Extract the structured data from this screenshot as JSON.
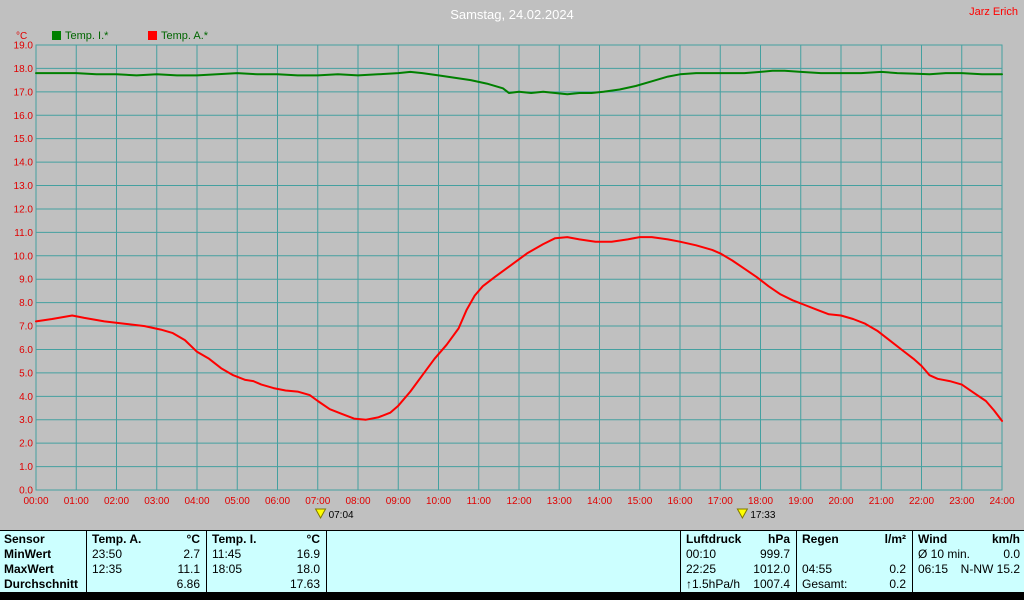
{
  "header": {
    "title": "Samstag, 24.02.2024",
    "owner": "Jarz Erich"
  },
  "chart_data": {
    "type": "line",
    "unit_label": "°C",
    "xlim": [
      0,
      24
    ],
    "ylim": [
      0,
      19
    ],
    "y_step": 1,
    "grid": true,
    "legend_position": "top-left",
    "x_ticks": [
      "00:00",
      "01:00",
      "02:00",
      "03:00",
      "04:00",
      "05:00",
      "06:00",
      "07:00",
      "08:00",
      "09:00",
      "10:00",
      "11:00",
      "12:00",
      "13:00",
      "14:00",
      "15:00",
      "16:00",
      "17:00",
      "18:00",
      "19:00",
      "20:00",
      "21:00",
      "22:00",
      "23:00",
      "24:00"
    ],
    "colors": {
      "background": "#c0c0c0",
      "grid": "#44a0a0",
      "axis_text": "#e00000",
      "temp_inside": "#008000",
      "temp_outside": "#ff0000",
      "sun_marker": "#ffff00"
    },
    "series": [
      {
        "id": "temp-i",
        "name": "Temp. I.*",
        "color_key": "temp_inside",
        "points": [
          [
            0,
            17.8
          ],
          [
            0.5,
            17.8
          ],
          [
            1,
            17.8
          ],
          [
            1.5,
            17.75
          ],
          [
            2,
            17.75
          ],
          [
            2.5,
            17.7
          ],
          [
            3,
            17.75
          ],
          [
            3.5,
            17.7
          ],
          [
            4,
            17.7
          ],
          [
            4.5,
            17.75
          ],
          [
            5,
            17.8
          ],
          [
            5.5,
            17.75
          ],
          [
            6,
            17.75
          ],
          [
            6.5,
            17.7
          ],
          [
            7,
            17.7
          ],
          [
            7.5,
            17.75
          ],
          [
            8,
            17.7
          ],
          [
            8.5,
            17.75
          ],
          [
            9,
            17.8
          ],
          [
            9.3,
            17.85
          ],
          [
            9.6,
            17.8
          ],
          [
            10,
            17.7
          ],
          [
            10.4,
            17.6
          ],
          [
            10.8,
            17.5
          ],
          [
            11.2,
            17.35
          ],
          [
            11.6,
            17.15
          ],
          [
            11.75,
            16.95
          ],
          [
            12,
            17.0
          ],
          [
            12.3,
            16.95
          ],
          [
            12.6,
            17.0
          ],
          [
            12.9,
            16.95
          ],
          [
            13.2,
            16.9
          ],
          [
            13.5,
            16.95
          ],
          [
            13.8,
            16.95
          ],
          [
            14.1,
            17.0
          ],
          [
            14.5,
            17.1
          ],
          [
            14.9,
            17.25
          ],
          [
            15.3,
            17.45
          ],
          [
            15.7,
            17.65
          ],
          [
            16,
            17.75
          ],
          [
            16.4,
            17.8
          ],
          [
            16.8,
            17.8
          ],
          [
            17.2,
            17.8
          ],
          [
            17.6,
            17.8
          ],
          [
            18,
            17.85
          ],
          [
            18.3,
            17.9
          ],
          [
            18.6,
            17.9
          ],
          [
            19,
            17.85
          ],
          [
            19.5,
            17.8
          ],
          [
            20,
            17.8
          ],
          [
            20.5,
            17.8
          ],
          [
            21,
            17.85
          ],
          [
            21.4,
            17.8
          ],
          [
            21.8,
            17.78
          ],
          [
            22.2,
            17.75
          ],
          [
            22.6,
            17.8
          ],
          [
            23,
            17.8
          ],
          [
            23.5,
            17.75
          ],
          [
            24,
            17.75
          ]
        ]
      },
      {
        "id": "temp-a",
        "name": "Temp. A.*",
        "color_key": "temp_outside",
        "points": [
          [
            0,
            7.2
          ],
          [
            0.4,
            7.3
          ],
          [
            0.9,
            7.45
          ],
          [
            1.2,
            7.35
          ],
          [
            1.7,
            7.2
          ],
          [
            2.2,
            7.1
          ],
          [
            2.7,
            7.0
          ],
          [
            3.1,
            6.85
          ],
          [
            3.4,
            6.7
          ],
          [
            3.7,
            6.4
          ],
          [
            4.0,
            5.9
          ],
          [
            4.3,
            5.6
          ],
          [
            4.6,
            5.2
          ],
          [
            4.9,
            4.9
          ],
          [
            5.2,
            4.7
          ],
          [
            5.4,
            4.65
          ],
          [
            5.6,
            4.5
          ],
          [
            5.9,
            4.35
          ],
          [
            6.2,
            4.25
          ],
          [
            6.5,
            4.2
          ],
          [
            6.8,
            4.05
          ],
          [
            7.0,
            3.8
          ],
          [
            7.3,
            3.45
          ],
          [
            7.6,
            3.25
          ],
          [
            7.9,
            3.05
          ],
          [
            8.2,
            3.0
          ],
          [
            8.5,
            3.1
          ],
          [
            8.8,
            3.3
          ],
          [
            9.0,
            3.6
          ],
          [
            9.3,
            4.2
          ],
          [
            9.6,
            4.9
          ],
          [
            9.9,
            5.6
          ],
          [
            10.2,
            6.2
          ],
          [
            10.5,
            6.9
          ],
          [
            10.7,
            7.7
          ],
          [
            10.9,
            8.3
          ],
          [
            11.1,
            8.7
          ],
          [
            11.4,
            9.1
          ],
          [
            11.8,
            9.6
          ],
          [
            12.2,
            10.1
          ],
          [
            12.6,
            10.5
          ],
          [
            12.9,
            10.75
          ],
          [
            13.2,
            10.8
          ],
          [
            13.5,
            10.7
          ],
          [
            13.9,
            10.6
          ],
          [
            14.3,
            10.6
          ],
          [
            14.7,
            10.7
          ],
          [
            15.0,
            10.8
          ],
          [
            15.3,
            10.8
          ],
          [
            15.7,
            10.7
          ],
          [
            16.0,
            10.6
          ],
          [
            16.4,
            10.45
          ],
          [
            16.8,
            10.25
          ],
          [
            17.0,
            10.1
          ],
          [
            17.3,
            9.8
          ],
          [
            17.6,
            9.45
          ],
          [
            17.9,
            9.1
          ],
          [
            18.2,
            8.7
          ],
          [
            18.5,
            8.35
          ],
          [
            18.8,
            8.1
          ],
          [
            19.1,
            7.9
          ],
          [
            19.4,
            7.7
          ],
          [
            19.7,
            7.5
          ],
          [
            20.0,
            7.45
          ],
          [
            20.3,
            7.3
          ],
          [
            20.6,
            7.1
          ],
          [
            20.9,
            6.8
          ],
          [
            21.2,
            6.4
          ],
          [
            21.5,
            6.0
          ],
          [
            21.8,
            5.6
          ],
          [
            22.0,
            5.3
          ],
          [
            22.2,
            4.9
          ],
          [
            22.4,
            4.75
          ],
          [
            22.7,
            4.65
          ],
          [
            23.0,
            4.5
          ],
          [
            23.3,
            4.15
          ],
          [
            23.6,
            3.8
          ],
          [
            23.8,
            3.4
          ],
          [
            24.0,
            2.95
          ]
        ]
      }
    ],
    "sun_markers": [
      {
        "time_label": "07:04",
        "x": 7.07
      },
      {
        "time_label": "17:33",
        "x": 17.55
      }
    ]
  },
  "stats": {
    "row_labels": {
      "sensor": "Sensor",
      "min": "MinWert",
      "max": "MaxWert",
      "avg": "Durchschnitt"
    },
    "temp_a": {
      "title": "Temp. A.",
      "unit": "°C",
      "min_time": "23:50",
      "min_value": "2.7",
      "max_time": "12:35",
      "max_value": "11.1",
      "avg": "6.86"
    },
    "temp_i": {
      "title": "Temp. I.",
      "unit": "°C",
      "min_time": "11:45",
      "min_value": "16.9",
      "max_time": "18:05",
      "max_value": "18.0",
      "avg": "17.63"
    },
    "luftdruck": {
      "title": "Luftdruck",
      "unit": "hPa",
      "min_time": "00:10",
      "min_value": "999.7",
      "max_time": "22:25",
      "max_value": "1012.0",
      "trend": "↑1.5hPa/h",
      "avg": "1007.4"
    },
    "regen": {
      "title": "Regen",
      "unit": "l/m²",
      "max_time": "04:55",
      "max_value": "0.2",
      "total_label": "Gesamt:",
      "total_value": "0.2"
    },
    "wind": {
      "title": "Wind",
      "unit": "km/h",
      "avg_label": "Ø 10 min.",
      "avg_value": "0.0",
      "max_time": "06:15",
      "max_value": "N-NW 15.2"
    }
  }
}
